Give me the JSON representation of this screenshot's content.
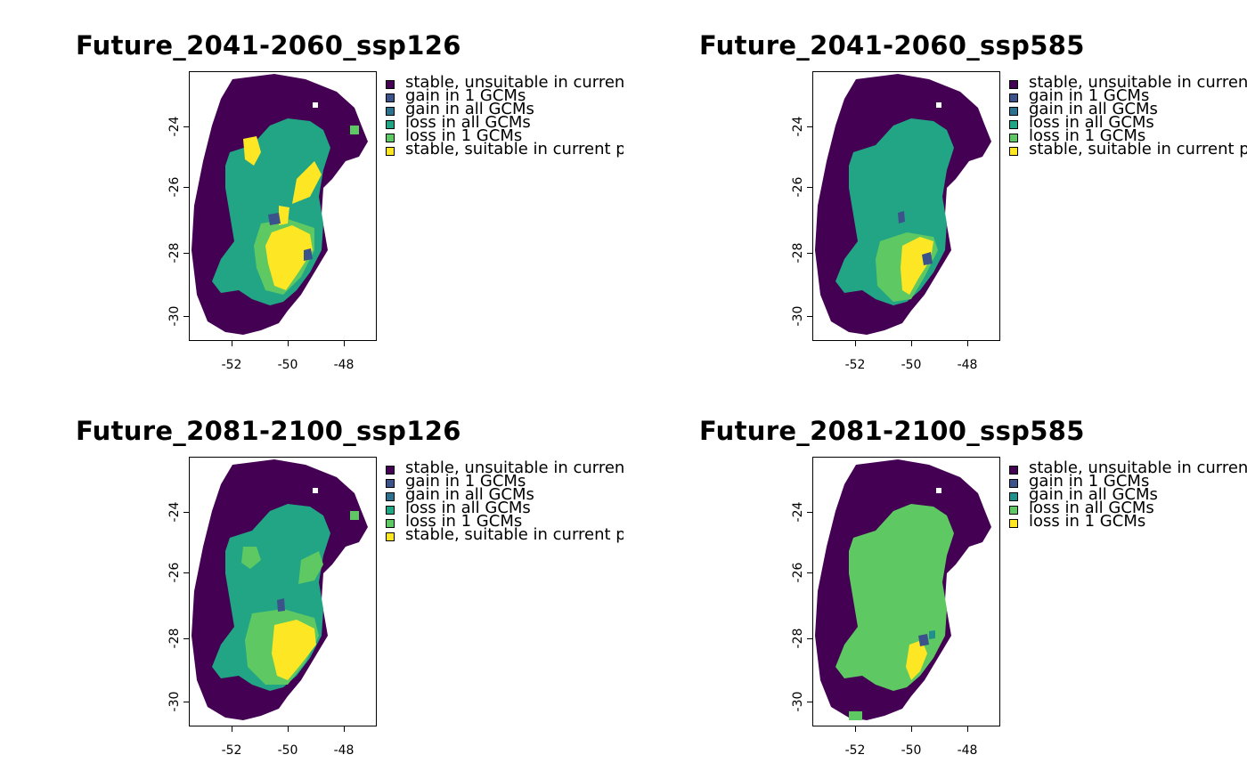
{
  "colors": {
    "stable_unsuitable": "#440154",
    "gain_1": "#3b528b",
    "gain_all": "#21908c",
    "loss_all": "#21a585",
    "loss_1": "#5ec962",
    "stable_suitable": "#fde725",
    "loss_all_green": "#5ec962",
    "loss_1_yellow": "#fde725"
  },
  "axes": {
    "y_ticks": [
      "-24",
      "-26",
      "-28",
      "-30"
    ],
    "x_ticks": [
      "-52",
      "-50",
      "-48"
    ]
  },
  "panels": [
    {
      "title": "Future_2041-2060_ssp126",
      "legend": [
        {
          "label": "stable, unsuitable in current period and all GCMs",
          "color": "#440154"
        },
        {
          "label": "gain in 1 GCMs",
          "color": "#3b528b"
        },
        {
          "label": "gain in all GCMs",
          "color": "#2c728e"
        },
        {
          "label": "loss in all GCMs",
          "color": "#21a585"
        },
        {
          "label": "loss in 1 GCMs",
          "color": "#5ec962"
        },
        {
          "label": "stable, suitable in current period and all GCMs",
          "color": "#fde725"
        }
      ]
    },
    {
      "title": "Future_2041-2060_ssp585",
      "legend": [
        {
          "label": "stable, unsuitable in current period and all GCMs",
          "color": "#440154"
        },
        {
          "label": "gain in 1 GCMs",
          "color": "#3b528b"
        },
        {
          "label": "gain in all GCMs",
          "color": "#2c728e"
        },
        {
          "label": "loss in all GCMs",
          "color": "#21a585"
        },
        {
          "label": "loss in 1 GCMs",
          "color": "#5ec962"
        },
        {
          "label": "stable, suitable in current period and all GCMs",
          "color": "#fde725"
        }
      ]
    },
    {
      "title": "Future_2081-2100_ssp126",
      "legend": [
        {
          "label": "stable, unsuitable in current period and all GCMs",
          "color": "#440154"
        },
        {
          "label": "gain in 1 GCMs",
          "color": "#3b528b"
        },
        {
          "label": "gain in all GCMs",
          "color": "#2c728e"
        },
        {
          "label": "loss in all GCMs",
          "color": "#21a585"
        },
        {
          "label": "loss in 1 GCMs",
          "color": "#5ec962"
        },
        {
          "label": "stable, suitable in current period and all GCMs",
          "color": "#fde725"
        }
      ]
    },
    {
      "title": "Future_2081-2100_ssp585",
      "legend": [
        {
          "label": "stable, unsuitable in current period and all GCMs",
          "color": "#440154"
        },
        {
          "label": "gain in 1 GCMs",
          "color": "#3b528b"
        },
        {
          "label": "gain in all GCMs",
          "color": "#21908c"
        },
        {
          "label": "loss in all GCMs",
          "color": "#5ec962"
        },
        {
          "label": "loss in 1 GCMs",
          "color": "#fde725"
        }
      ]
    }
  ]
}
